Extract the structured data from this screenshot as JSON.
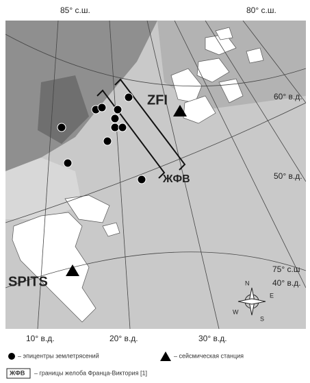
{
  "map": {
    "lat_labels": [
      "85° с.ш.",
      "80° с.ш.",
      "75° с.ш"
    ],
    "lon_labels": [
      "60° в.д.",
      "50° в.д.",
      "40° в.д.",
      "10° в.д.",
      "20° в.д.",
      "30° в.д."
    ],
    "stations": [
      "ZFI",
      "SPITS"
    ],
    "trough_label": "ЖФВ",
    "compass": [
      "N",
      "E",
      "S",
      "W"
    ]
  },
  "legend": {
    "epicenters": "– эпицентры землетрясений",
    "station": "– сейсмическая станция",
    "trough_key": "ЖФВ",
    "trough": "– границы желоба Франца-Виктория [1]"
  }
}
